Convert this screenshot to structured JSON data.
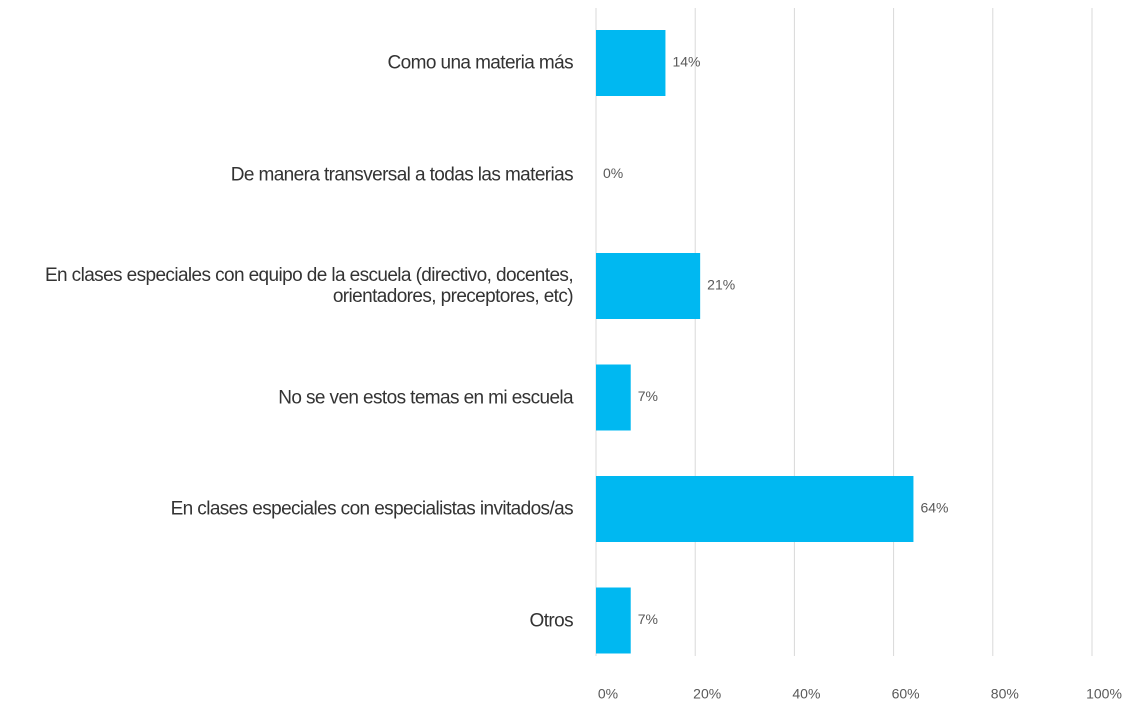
{
  "chart_data": {
    "type": "barh",
    "categories": [
      "Como una materia más",
      "De manera transversal a todas las materias",
      "En clases especiales con equipo de la escuela (directivo, docentes, orientadores, preceptores, etc)",
      "No se ven estos temas en mi escuela",
      "En clases especiales con especialistas invitados/as",
      "Otros"
    ],
    "values": [
      14,
      0,
      21,
      7,
      64,
      7
    ],
    "value_labels": [
      "14%",
      "0%",
      "21%",
      "7%",
      "64%",
      "7%"
    ],
    "color": "#00b8f1",
    "xlim": [
      0,
      100
    ],
    "xticks": [
      {
        "value": 0,
        "label": "0%"
      },
      {
        "value": 20,
        "label": "20%"
      },
      {
        "value": 40,
        "label": "40%"
      },
      {
        "value": 60,
        "label": "60%"
      },
      {
        "value": 80,
        "label": "80%"
      },
      {
        "value": 100,
        "label": "100%"
      }
    ],
    "grid": true
  }
}
